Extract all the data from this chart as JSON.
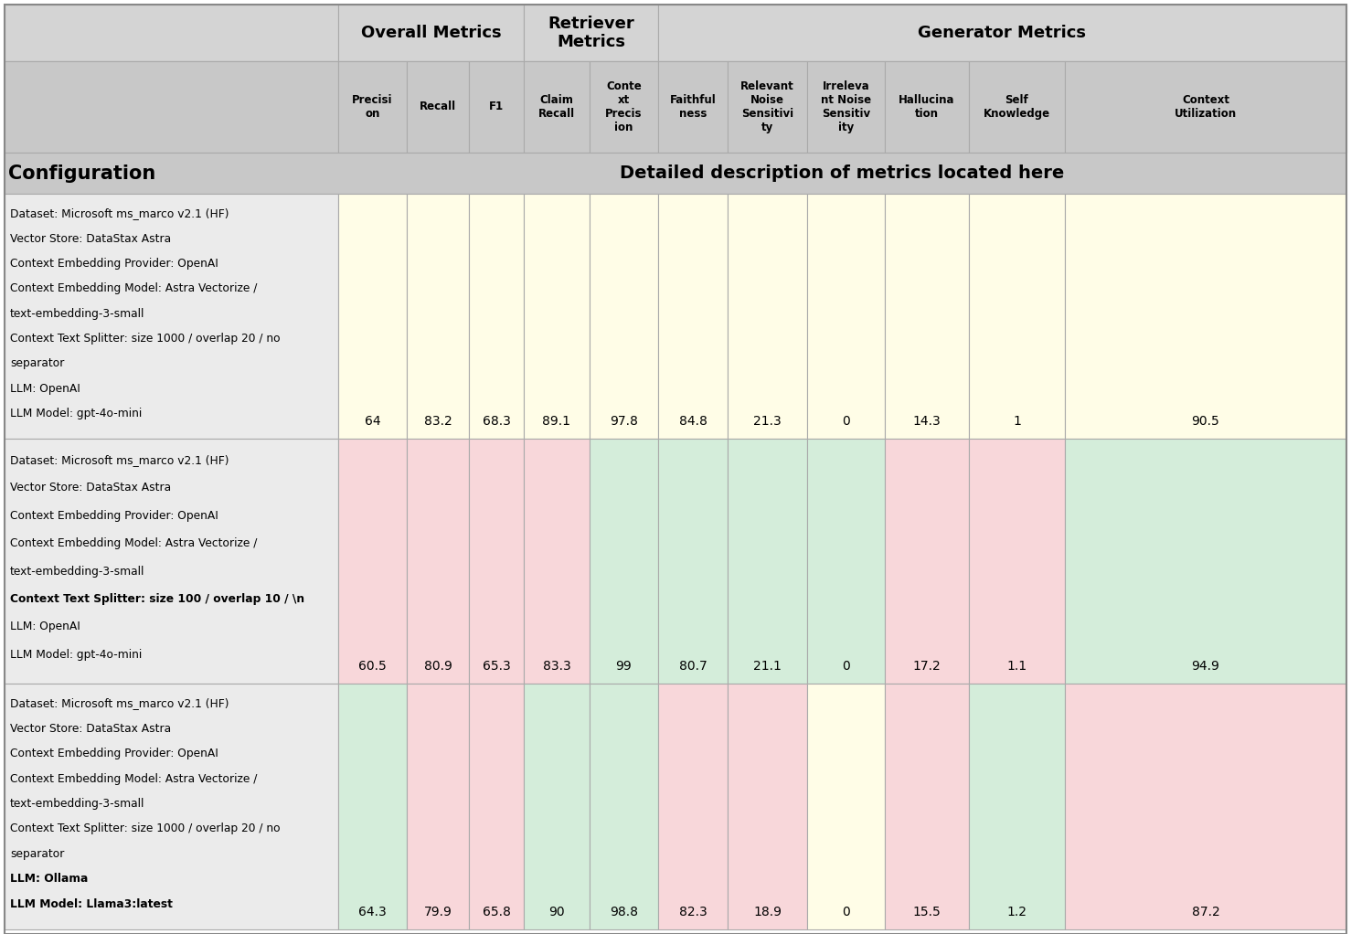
{
  "fig_width": 14.78,
  "fig_height": 10.22,
  "bg_color": "#ffffff",
  "header_bg1": "#d4d4d4",
  "header_bg2": "#c8c8c8",
  "col_headers": [
    "Precisi\non",
    "Recall",
    "F1",
    "Claim\nRecall",
    "Conte\nxt\nPrecis\nion",
    "Faithful\nness",
    "Relevant\nNoise\nSensitivi\nty",
    "Irreleva\nnt Noise\nSensitiv\nity",
    "Hallucina\ntion",
    "Self\nKnowledge",
    "Context\nUtilization"
  ],
  "config_label": "Configuration",
  "metrics_label": "Detailed description of metrics located here",
  "rows": [
    {
      "config_lines": [
        {
          "text": "Dataset: Microsoft ms_marco v2.1 (HF)",
          "bold": false
        },
        {
          "text": "Vector Store: DataStax Astra",
          "bold": false
        },
        {
          "text": "Context Embedding Provider: OpenAI",
          "bold": false
        },
        {
          "text": "Context Embedding Model: Astra Vectorize /",
          "bold": false
        },
        {
          "text": "text-embedding-3-small",
          "bold": false
        },
        {
          "text": "Context Text Splitter: size 1000 / overlap 20 / no",
          "bold": false
        },
        {
          "text": "separator",
          "bold": false
        },
        {
          "text": "LLM: OpenAI",
          "bold": false
        },
        {
          "text": "LLM Model: gpt-4o-mini",
          "bold": false
        }
      ],
      "values": [
        64,
        83.2,
        68.3,
        89.1,
        97.8,
        84.8,
        21.3,
        0,
        14.3,
        1,
        90.5
      ],
      "cell_colors": [
        "#fffde7",
        "#fffde7",
        "#fffde7",
        "#fffde7",
        "#fffde7",
        "#fffde7",
        "#fffde7",
        "#fffde7",
        "#fffde7",
        "#fffde7",
        "#fffde7"
      ]
    },
    {
      "config_lines": [
        {
          "text": "Dataset: Microsoft ms_marco v2.1 (HF)",
          "bold": false
        },
        {
          "text": "Vector Store: DataStax Astra",
          "bold": false
        },
        {
          "text": "Context Embedding Provider: OpenAI",
          "bold": false
        },
        {
          "text": "Context Embedding Model: Astra Vectorize /",
          "bold": false
        },
        {
          "text": "text-embedding-3-small",
          "bold": false
        },
        {
          "text": "Context Text Splitter: size 100 / overlap 10 / \\n",
          "bold": true
        },
        {
          "text": "LLM: OpenAI",
          "bold": false
        },
        {
          "text": "LLM Model: gpt-4o-mini",
          "bold": false
        }
      ],
      "values": [
        60.5,
        80.9,
        65.3,
        83.3,
        99,
        80.7,
        21.1,
        0,
        17.2,
        1.1,
        94.9
      ],
      "cell_colors": [
        "#f8d7da",
        "#f8d7da",
        "#f8d7da",
        "#f8d7da",
        "#d4edda",
        "#d4edda",
        "#d4edda",
        "#d4edda",
        "#f8d7da",
        "#f8d7da",
        "#d4edda"
      ]
    },
    {
      "config_lines": [
        {
          "text": "Dataset: Microsoft ms_marco v2.1 (HF)",
          "bold": false
        },
        {
          "text": "Vector Store: DataStax Astra",
          "bold": false
        },
        {
          "text": "Context Embedding Provider: OpenAI",
          "bold": false
        },
        {
          "text": "Context Embedding Model: Astra Vectorize /",
          "bold": false
        },
        {
          "text": "text-embedding-3-small",
          "bold": false
        },
        {
          "text": "Context Text Splitter: size 1000 / overlap 20 / no",
          "bold": false
        },
        {
          "text": "separator",
          "bold": false
        },
        {
          "text": "LLM: Ollama",
          "bold": true
        },
        {
          "text": "LLM Model: Llama3:latest",
          "bold": true
        }
      ],
      "values": [
        64.3,
        79.9,
        65.8,
        90,
        98.8,
        82.3,
        18.9,
        0,
        15.5,
        1.2,
        87.2
      ],
      "cell_colors": [
        "#d4edda",
        "#f8d7da",
        "#f8d7da",
        "#d4edda",
        "#d4edda",
        "#f8d7da",
        "#f8d7da",
        "#fffde7",
        "#f8d7da",
        "#d4edda",
        "#f8d7da"
      ]
    }
  ]
}
